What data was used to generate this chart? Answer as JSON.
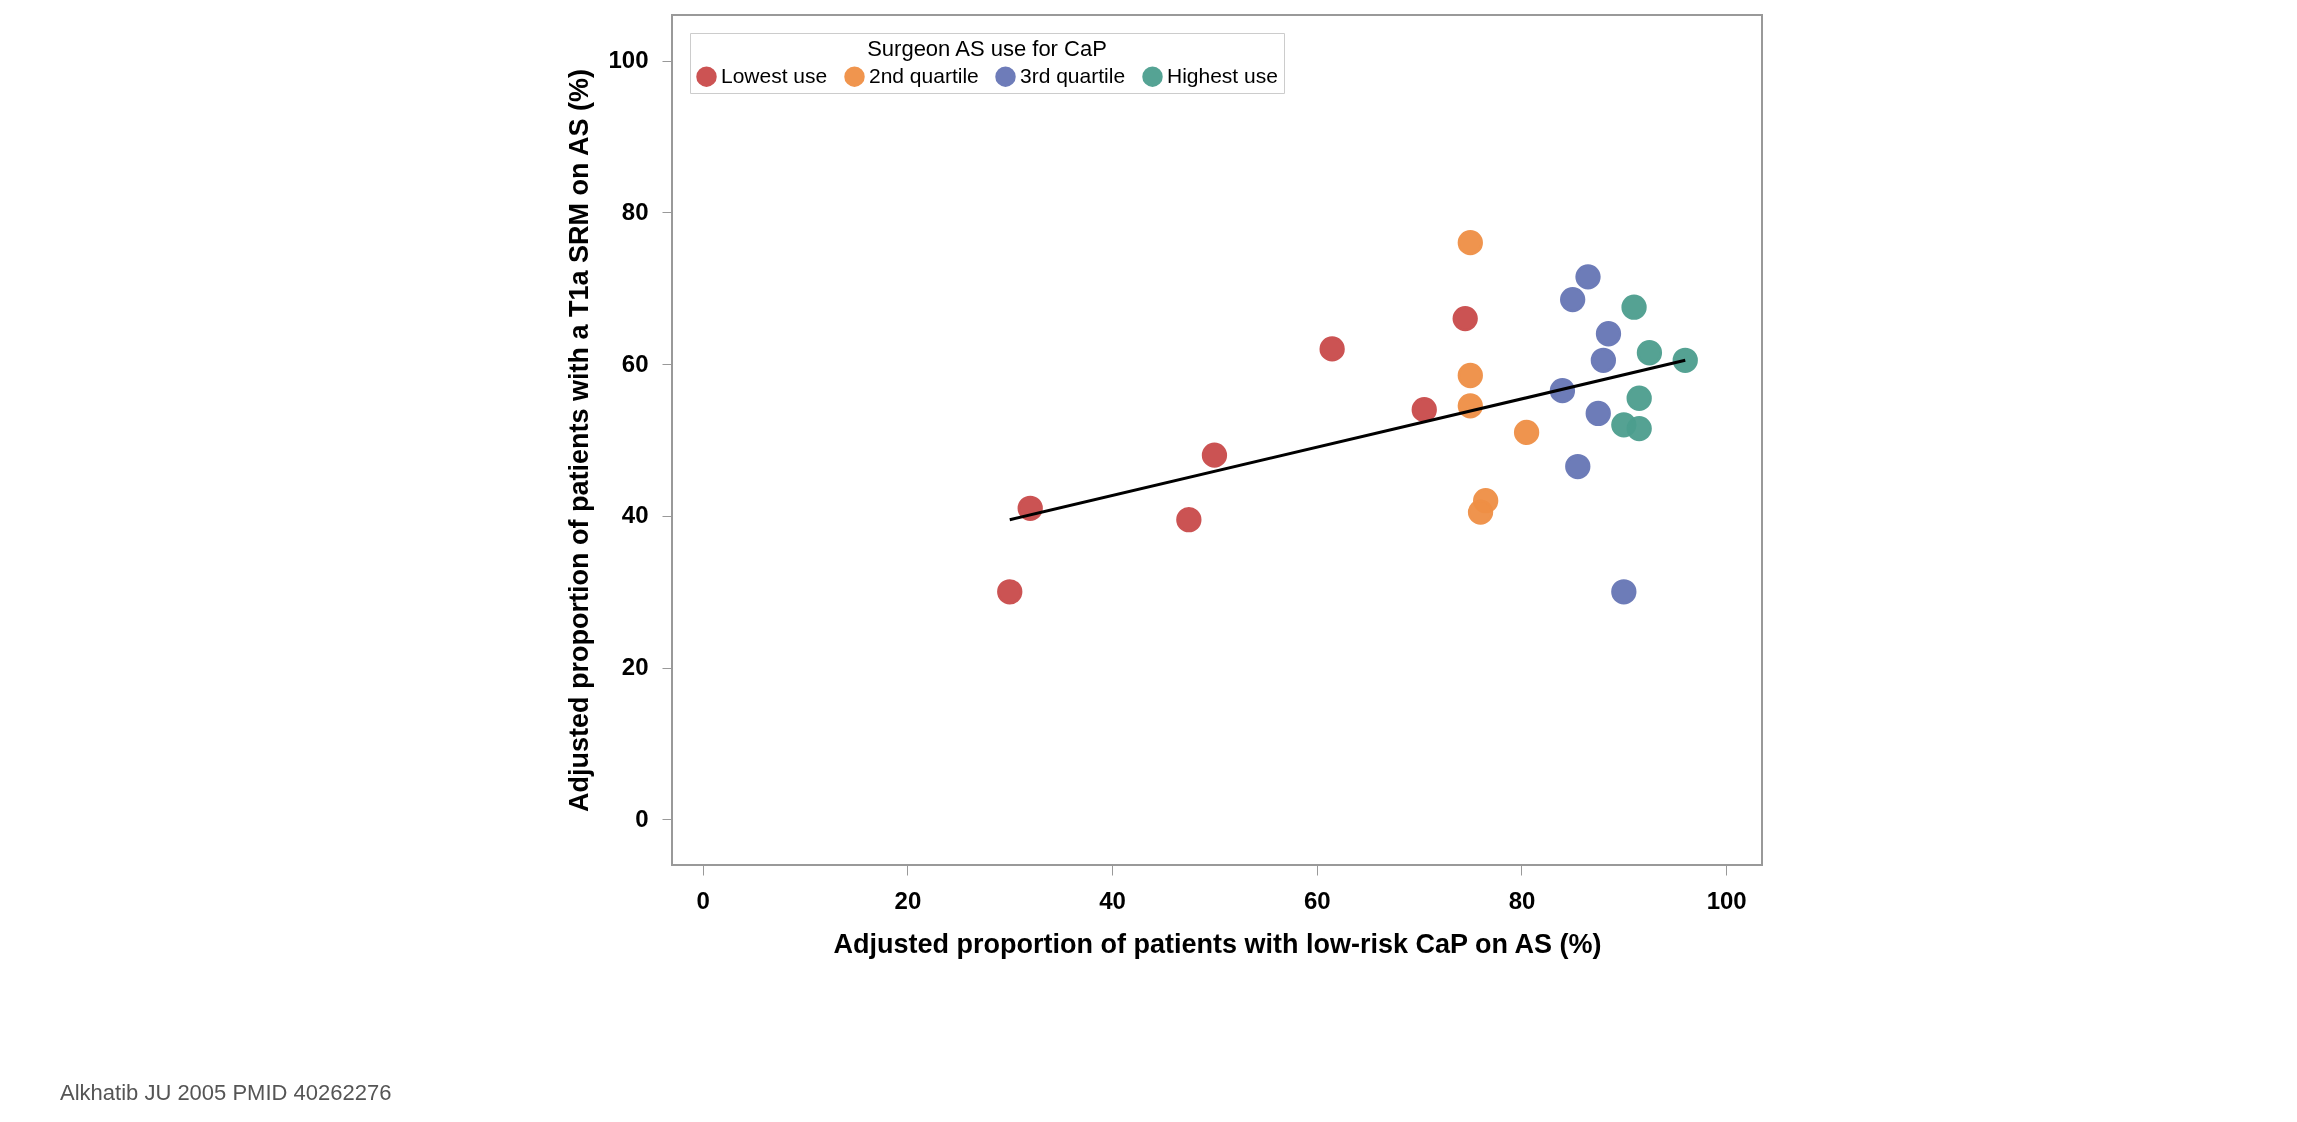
{
  "chart_data": {
    "type": "scatter",
    "xlabel": "Adjusted proportion of patients with low-risk CaP on AS (%)",
    "ylabel": "Adjusted proportion of patients with a T1a SRM on AS (%)",
    "legend_title": "Surgeon AS use for CaP",
    "legend": "top left",
    "marker": "circle",
    "grid": false,
    "xlim": [
      -3,
      103.5
    ],
    "ylim": [
      -6,
      106
    ],
    "xticks": [
      0,
      20,
      40,
      60,
      80,
      100
    ],
    "yticks": [
      0,
      20,
      40,
      60,
      80,
      100
    ],
    "series": [
      {
        "name": "Lowest use",
        "color": "#c94a4a",
        "x": [
          30,
          32,
          47.5,
          50,
          61.5,
          70.5,
          74.5
        ],
        "values": [
          30,
          41,
          39.5,
          48,
          62,
          54,
          66
        ]
      },
      {
        "name": "2nd quartile",
        "color": "#ef8f45",
        "x": [
          75,
          75,
          75,
          80.5,
          76.5,
          76
        ],
        "values": [
          76,
          58.5,
          54.5,
          51,
          42,
          40.5
        ]
      },
      {
        "name": "3rd quartile",
        "color": "#6675b5",
        "x": [
          85,
          86.5,
          88.5,
          88,
          84,
          87.5,
          85.5,
          90
        ],
        "values": [
          68.5,
          71.5,
          64,
          60.5,
          56.5,
          53.5,
          46.5,
          30
        ]
      },
      {
        "name": "Highest use",
        "color": "#4c9e8e",
        "x": [
          91,
          92.5,
          96,
          91.5,
          90,
          91.5
        ],
        "values": [
          67.5,
          61.5,
          60.5,
          55.5,
          52,
          51.5
        ]
      },
      {
        "type": "line",
        "marker": "none",
        "color": "#000000",
        "x": [
          30,
          96
        ],
        "values": [
          39.5,
          60.5
        ]
      }
    ],
    "annotations": [
      "Alkhatib JU 2005 PMID 40262276"
    ]
  }
}
